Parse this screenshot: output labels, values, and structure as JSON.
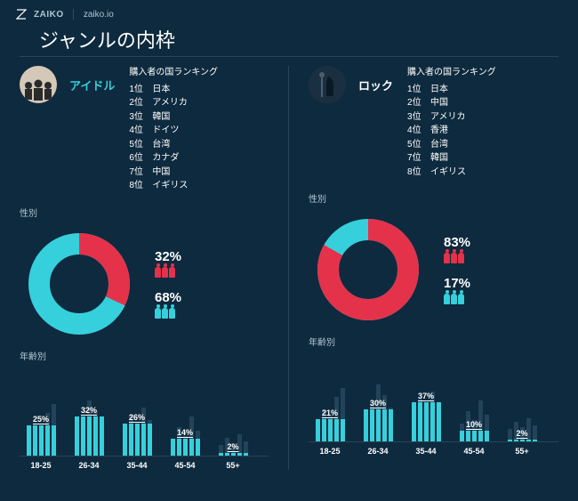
{
  "brand": "ZAIKO",
  "site": "zaiko.io",
  "page_title": "ジャンルの内枠",
  "colors": {
    "bg": "#0e2a3e",
    "cyan": "#35d0db",
    "red": "#e4324a",
    "bar_bg": "#234358",
    "divider": "#2a4556"
  },
  "panels": [
    {
      "genre_name": "アイドル",
      "name_color": "#35d0db",
      "icon": "idol",
      "ranking_title": "購入者の国ランキング",
      "ranking": [
        {
          "n": "1位",
          "c": "日本"
        },
        {
          "n": "2位",
          "c": "アメリカ"
        },
        {
          "n": "3位",
          "c": "韓国"
        },
        {
          "n": "4位",
          "c": "ドイツ"
        },
        {
          "n": "5位",
          "c": "台湾"
        },
        {
          "n": "6位",
          "c": "カナダ"
        },
        {
          "n": "7位",
          "c": "中国"
        },
        {
          "n": "8位",
          "c": "イギリス"
        }
      ],
      "gender_label": "性別",
      "donut": {
        "red_pct": 32,
        "cyan_pct": 68,
        "stroke_w": 24
      },
      "gender_stats": [
        {
          "pct": "32%",
          "color": "#e4324a"
        },
        {
          "pct": "68%",
          "color": "#35d0db"
        }
      ],
      "age_label": "年齢別",
      "age_chart": {
        "max_bg_h": 74,
        "bg_heights": [
          [
            20,
            34,
            28,
            48,
            58
          ],
          [
            30,
            42,
            62,
            50,
            36
          ],
          [
            24,
            46,
            30,
            54,
            40
          ],
          [
            18,
            32,
            22,
            44,
            28
          ],
          [
            12,
            20,
            14,
            24,
            16
          ]
        ],
        "fg_color": "#35d0db",
        "values": [
          25,
          32,
          26,
          14,
          2
        ],
        "x_labels": [
          "18-25",
          "26-34",
          "35-44",
          "45-54",
          "55+"
        ]
      }
    },
    {
      "genre_name": "ロック",
      "name_color": "#ffffff",
      "icon": "rock",
      "ranking_title": "購入者の国ランキング",
      "ranking": [
        {
          "n": "1位",
          "c": "日本"
        },
        {
          "n": "2位",
          "c": "中国"
        },
        {
          "n": "3位",
          "c": "アメリカ"
        },
        {
          "n": "4位",
          "c": "香港"
        },
        {
          "n": "5位",
          "c": "台湾"
        },
        {
          "n": "7位",
          "c": "韓国"
        },
        {
          "n": "8位",
          "c": "イギリス"
        }
      ],
      "gender_label": "性別",
      "donut": {
        "red_pct": 83,
        "cyan_pct": 17,
        "stroke_w": 24
      },
      "gender_stats": [
        {
          "pct": "83%",
          "color": "#e4324a"
        },
        {
          "pct": "17%",
          "color": "#35d0db"
        }
      ],
      "age_label": "年齢別",
      "age_chart": {
        "max_bg_h": 74,
        "bg_heights": [
          [
            22,
            36,
            30,
            50,
            60
          ],
          [
            32,
            44,
            64,
            52,
            38
          ],
          [
            26,
            48,
            32,
            56,
            42
          ],
          [
            20,
            34,
            24,
            46,
            30
          ],
          [
            14,
            22,
            16,
            26,
            18
          ]
        ],
        "fg_color": "#35d0db",
        "values": [
          21,
          30,
          37,
          10,
          2
        ],
        "x_labels": [
          "18-25",
          "26-34",
          "35-44",
          "45-54",
          "55+"
        ]
      }
    }
  ]
}
